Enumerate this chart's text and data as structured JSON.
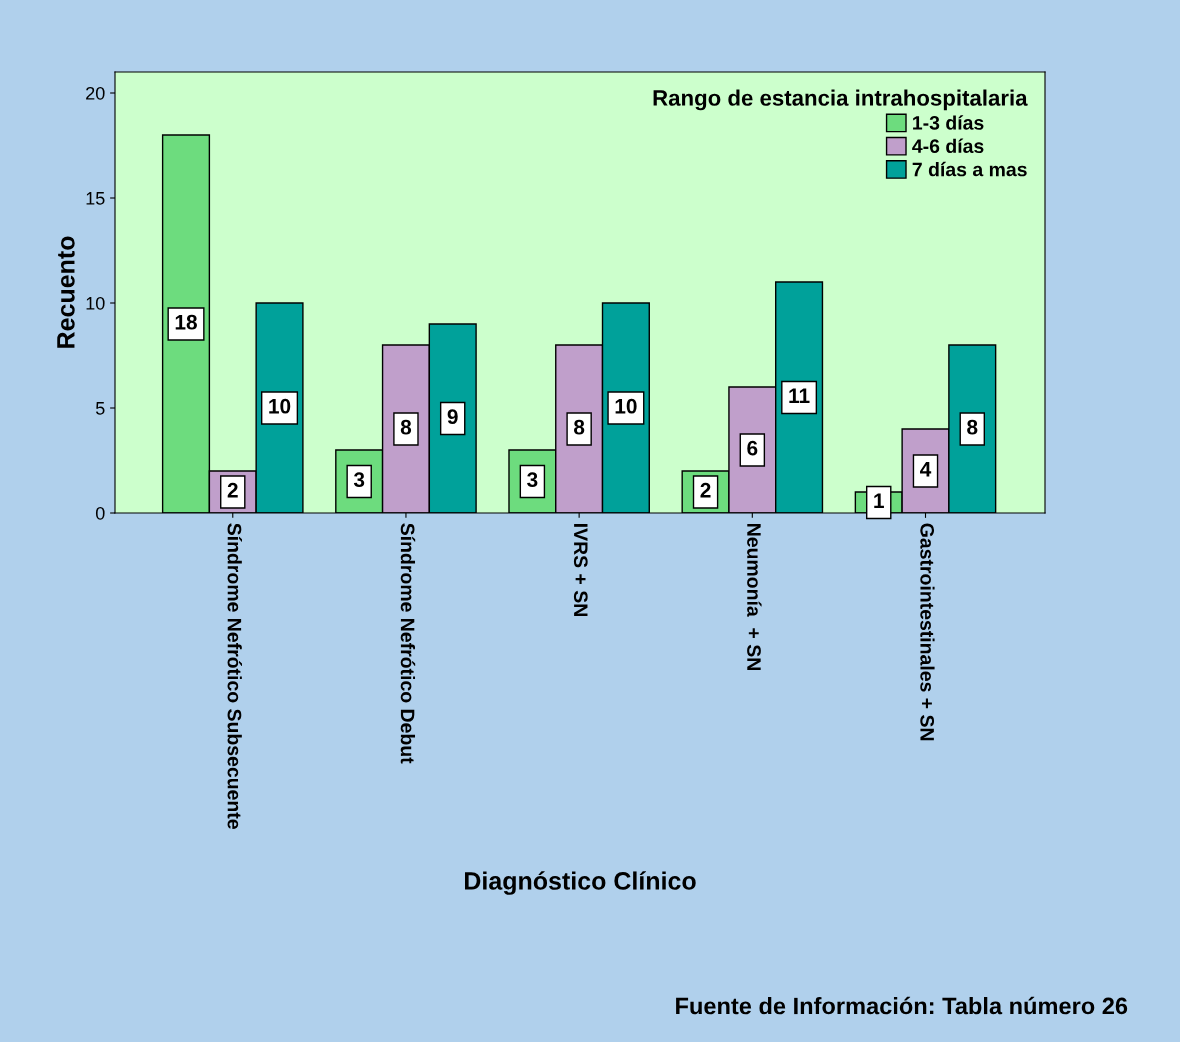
{
  "chart_data": {
    "type": "bar",
    "xlabel": "Diagnóstico Clínico",
    "ylabel": "Recuento",
    "legend_title": "Rango de estancia intrahospitalaria",
    "categories": [
      "Síndrome Nefrótico Subsecuente",
      "Síndrome Nefrótico Debut",
      "IVRS + SN",
      "Neumonía  + SN",
      "Gastrointestinales + SN"
    ],
    "series": [
      {
        "name": "1-3 días",
        "color": "#6ddc7e",
        "values": [
          18,
          3,
          3,
          2,
          1
        ]
      },
      {
        "name": "4-6 días",
        "color": "#c09fcb",
        "values": [
          2,
          8,
          8,
          6,
          4
        ]
      },
      {
        "name": "7 días a mas",
        "color": "#00a19a",
        "values": [
          10,
          9,
          10,
          11,
          8
        ]
      }
    ],
    "ylim": [
      0,
      21
    ],
    "yticks": [
      0,
      5,
      10,
      15,
      20
    ],
    "grid": false,
    "legend": "top right",
    "data_labels": true,
    "annotations": [
      "Fuente de Información: Tabla número 26"
    ]
  }
}
